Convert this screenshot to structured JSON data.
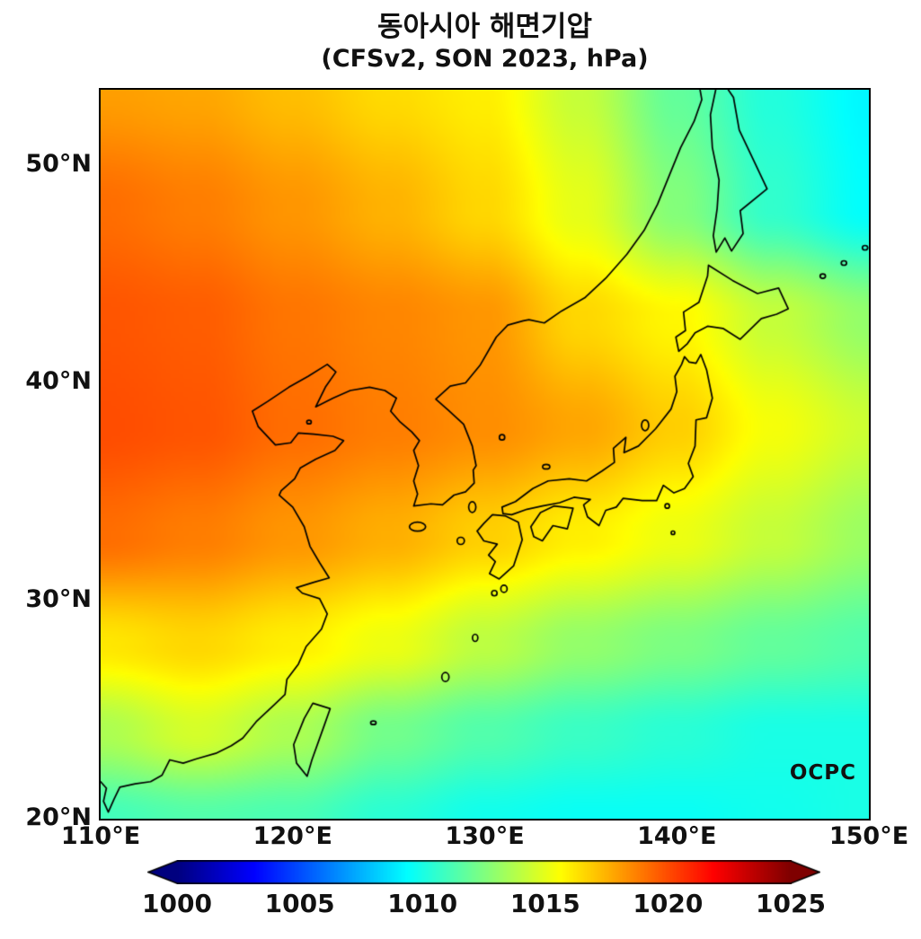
{
  "title": {
    "line1": "동아시아 해면기압",
    "line2": "(CFSv2, SON 2023, hPa)"
  },
  "watermark": "OCPC",
  "axes": {
    "x_ticks": [
      {
        "label": "110°E",
        "lon": 110
      },
      {
        "label": "120°E",
        "lon": 120
      },
      {
        "label": "130°E",
        "lon": 130
      },
      {
        "label": "140°E",
        "lon": 140
      },
      {
        "label": "150°E",
        "lon": 150
      }
    ],
    "y_ticks": [
      {
        "label": "20°N",
        "lat": 20
      },
      {
        "label": "30°N",
        "lat": 30
      },
      {
        "label": "40°N",
        "lat": 40
      },
      {
        "label": "50°N",
        "lat": 50
      }
    ]
  },
  "colorbar": {
    "ticks": [
      "1000",
      "1005",
      "1010",
      "1015",
      "1020",
      "1025"
    ],
    "vmin": 1000,
    "vmax": 1025,
    "extend": "both",
    "under_color": "#00007f",
    "over_color": "#7f0000"
  },
  "chart_data": {
    "type": "heatmap",
    "title": "동아시아 해면기압",
    "subtitle": "(CFSv2, SON 2023, hPa)",
    "model": "CFSv2",
    "season": "SON 2023",
    "units": "hPa",
    "variable": "sea level pressure",
    "colormap": "jet",
    "vmin": 1000,
    "vmax": 1025,
    "lon_range": [
      110,
      150
    ],
    "lat_range": [
      20,
      53.45
    ],
    "grid": {
      "lons": [
        110,
        115,
        120,
        125,
        130,
        135,
        140,
        145,
        150
      ],
      "lats": [
        53.5,
        48,
        43,
        38,
        33,
        28,
        24,
        20
      ],
      "values": [
        [
          1018.0,
          1017.8,
          1017.2,
          1016.5,
          1016.0,
          1014.2,
          1011.8,
          1010.2,
          1009.2
        ],
        [
          1019.2,
          1018.8,
          1018.2,
          1017.5,
          1016.6,
          1015.0,
          1012.6,
          1010.6,
          1009.4
        ],
        [
          1019.8,
          1019.6,
          1019.0,
          1018.6,
          1018.2,
          1016.6,
          1015.8,
          1014.2,
          1013.0
        ],
        [
          1020.0,
          1019.8,
          1019.2,
          1018.8,
          1018.4,
          1017.8,
          1016.8,
          1015.4,
          1014.4
        ],
        [
          1019.2,
          1018.8,
          1018.2,
          1017.6,
          1016.8,
          1016.0,
          1015.2,
          1014.2,
          1013.2
        ],
        [
          1016.2,
          1016.6,
          1016.0,
          1015.2,
          1014.0,
          1013.0,
          1012.4,
          1011.8,
          1011.4
        ],
        [
          1013.6,
          1014.6,
          1013.6,
          1012.2,
          1011.4,
          1010.8,
          1010.4,
          1010.0,
          1010.0
        ],
        [
          1011.0,
          1011.4,
          1011.2,
          1010.4,
          1009.8,
          1009.6,
          1009.6,
          1009.8,
          1010.0
        ]
      ]
    }
  },
  "geo": {
    "coastlines": [
      {
        "name": "asia-mainland-coast",
        "closed": false,
        "points": [
          [
            110.0,
            21.7
          ],
          [
            110.3,
            21.4
          ],
          [
            110.15,
            20.8
          ],
          [
            110.4,
            20.3
          ],
          [
            110.7,
            20.9
          ],
          [
            111.0,
            21.45
          ],
          [
            111.8,
            21.6
          ],
          [
            112.6,
            21.7
          ],
          [
            113.2,
            22.0
          ],
          [
            113.6,
            22.7
          ],
          [
            114.3,
            22.55
          ],
          [
            115.0,
            22.75
          ],
          [
            116.0,
            23.0
          ],
          [
            116.8,
            23.35
          ],
          [
            117.4,
            23.7
          ],
          [
            118.1,
            24.45
          ],
          [
            119.0,
            25.2
          ],
          [
            119.6,
            25.7
          ],
          [
            119.7,
            26.4
          ],
          [
            120.3,
            27.1
          ],
          [
            120.7,
            27.9
          ],
          [
            121.5,
            28.7
          ],
          [
            121.8,
            29.4
          ],
          [
            121.4,
            30.1
          ],
          [
            120.5,
            30.35
          ],
          [
            120.2,
            30.6
          ],
          [
            121.1,
            30.85
          ],
          [
            121.9,
            31.05
          ],
          [
            121.4,
            31.75
          ],
          [
            120.9,
            32.5
          ],
          [
            120.6,
            33.4
          ],
          [
            120.0,
            34.3
          ],
          [
            119.3,
            34.85
          ],
          [
            119.4,
            35.05
          ],
          [
            120.1,
            35.6
          ],
          [
            120.4,
            36.1
          ],
          [
            121.2,
            36.5
          ],
          [
            122.2,
            36.9
          ],
          [
            122.65,
            37.35
          ],
          [
            122.1,
            37.55
          ],
          [
            121.1,
            37.65
          ],
          [
            120.3,
            37.7
          ],
          [
            119.9,
            37.25
          ],
          [
            119.1,
            37.15
          ],
          [
            118.2,
            38.0
          ],
          [
            117.9,
            38.7
          ],
          [
            118.7,
            39.15
          ],
          [
            119.8,
            39.8
          ],
          [
            120.8,
            40.3
          ],
          [
            121.8,
            40.85
          ],
          [
            122.25,
            40.5
          ],
          [
            121.7,
            39.8
          ],
          [
            121.2,
            38.9
          ],
          [
            122.1,
            39.3
          ],
          [
            123.0,
            39.65
          ],
          [
            124.0,
            39.8
          ],
          [
            124.8,
            39.65
          ],
          [
            125.4,
            39.3
          ],
          [
            125.1,
            38.7
          ],
          [
            125.6,
            38.2
          ],
          [
            126.2,
            37.75
          ],
          [
            126.6,
            37.35
          ],
          [
            126.3,
            36.9
          ],
          [
            126.55,
            36.2
          ],
          [
            126.3,
            35.5
          ],
          [
            126.5,
            34.9
          ],
          [
            126.3,
            34.35
          ],
          [
            127.2,
            34.45
          ],
          [
            127.8,
            34.4
          ],
          [
            128.4,
            34.85
          ],
          [
            129.0,
            35.0
          ],
          [
            129.45,
            35.4
          ],
          [
            129.4,
            36.0
          ],
          [
            129.55,
            36.2
          ],
          [
            129.35,
            37.1
          ],
          [
            128.9,
            38.1
          ],
          [
            128.1,
            38.75
          ],
          [
            127.45,
            39.25
          ],
          [
            128.2,
            39.85
          ],
          [
            129.0,
            40.0
          ],
          [
            129.75,
            40.8
          ],
          [
            130.6,
            42.1
          ],
          [
            131.2,
            42.65
          ],
          [
            132.0,
            42.85
          ],
          [
            132.3,
            42.9
          ],
          [
            133.1,
            42.75
          ],
          [
            134.0,
            43.3
          ],
          [
            135.2,
            43.9
          ],
          [
            136.3,
            44.8
          ],
          [
            137.4,
            45.9
          ],
          [
            138.3,
            47.0
          ],
          [
            139.0,
            48.2
          ],
          [
            139.6,
            49.5
          ],
          [
            140.2,
            50.8
          ],
          [
            140.9,
            52.0
          ],
          [
            141.3,
            53.0
          ],
          [
            141.2,
            53.5
          ]
        ]
      },
      {
        "name": "sakhalin",
        "closed": true,
        "points": [
          [
            142.05,
            53.55
          ],
          [
            141.75,
            52.3
          ],
          [
            141.85,
            50.8
          ],
          [
            142.2,
            49.3
          ],
          [
            142.1,
            48.0
          ],
          [
            141.9,
            46.75
          ],
          [
            142.05,
            46.0
          ],
          [
            142.5,
            46.65
          ],
          [
            142.85,
            46.05
          ],
          [
            143.45,
            46.85
          ],
          [
            143.3,
            47.9
          ],
          [
            144.7,
            48.9
          ],
          [
            143.95,
            50.3
          ],
          [
            143.25,
            51.6
          ],
          [
            142.95,
            53.1
          ],
          [
            142.6,
            53.55
          ]
        ]
      },
      {
        "name": "hokkaido",
        "closed": true,
        "points": [
          [
            140.1,
            41.45
          ],
          [
            139.95,
            42.1
          ],
          [
            140.45,
            42.4
          ],
          [
            140.35,
            43.25
          ],
          [
            141.15,
            43.7
          ],
          [
            141.6,
            44.9
          ],
          [
            141.65,
            45.4
          ],
          [
            142.9,
            44.7
          ],
          [
            144.2,
            44.1
          ],
          [
            145.3,
            44.35
          ],
          [
            145.8,
            43.4
          ],
          [
            145.2,
            43.15
          ],
          [
            144.4,
            42.95
          ],
          [
            143.3,
            42.0
          ],
          [
            142.4,
            42.5
          ],
          [
            141.6,
            42.6
          ],
          [
            140.95,
            42.3
          ],
          [
            140.55,
            41.8
          ]
        ]
      },
      {
        "name": "honshu",
        "closed": true,
        "points": [
          [
            141.25,
            41.3
          ],
          [
            141.55,
            40.6
          ],
          [
            141.85,
            39.3
          ],
          [
            141.55,
            38.4
          ],
          [
            141.0,
            38.3
          ],
          [
            140.95,
            37.1
          ],
          [
            140.6,
            36.3
          ],
          [
            140.85,
            35.7
          ],
          [
            140.4,
            35.15
          ],
          [
            139.85,
            34.95
          ],
          [
            139.3,
            35.3
          ],
          [
            138.95,
            34.6
          ],
          [
            138.2,
            34.6
          ],
          [
            137.2,
            34.7
          ],
          [
            136.85,
            34.3
          ],
          [
            136.3,
            34.15
          ],
          [
            135.95,
            33.45
          ],
          [
            135.35,
            33.85
          ],
          [
            135.15,
            34.4
          ],
          [
            135.5,
            34.65
          ],
          [
            134.65,
            34.75
          ],
          [
            133.9,
            34.5
          ],
          [
            133.0,
            34.35
          ],
          [
            132.2,
            34.2
          ],
          [
            131.4,
            33.95
          ],
          [
            130.95,
            34.0
          ],
          [
            130.9,
            34.3
          ],
          [
            131.6,
            34.55
          ],
          [
            132.5,
            35.15
          ],
          [
            133.3,
            35.5
          ],
          [
            134.4,
            35.6
          ],
          [
            135.3,
            35.5
          ],
          [
            136.1,
            35.95
          ],
          [
            136.75,
            36.35
          ],
          [
            136.7,
            37.0
          ],
          [
            137.35,
            37.5
          ],
          [
            137.25,
            36.8
          ],
          [
            138.0,
            37.1
          ],
          [
            138.9,
            37.9
          ],
          [
            139.7,
            38.8
          ],
          [
            140.0,
            39.6
          ],
          [
            139.9,
            40.3
          ],
          [
            140.25,
            40.85
          ],
          [
            140.4,
            41.2
          ],
          [
            140.65,
            40.95
          ],
          [
            141.0,
            40.9
          ]
        ]
      },
      {
        "name": "shikoku",
        "closed": true,
        "points": [
          [
            132.4,
            33.4
          ],
          [
            132.9,
            34.05
          ],
          [
            133.6,
            34.35
          ],
          [
            134.6,
            34.25
          ],
          [
            134.3,
            33.3
          ],
          [
            133.55,
            33.45
          ],
          [
            133.0,
            32.75
          ],
          [
            132.55,
            32.95
          ]
        ]
      },
      {
        "name": "kyushu",
        "closed": true,
        "points": [
          [
            130.4,
            33.95
          ],
          [
            131.05,
            33.9
          ],
          [
            131.75,
            33.6
          ],
          [
            131.95,
            32.8
          ],
          [
            131.5,
            31.6
          ],
          [
            130.75,
            31.0
          ],
          [
            130.25,
            31.25
          ],
          [
            130.55,
            31.8
          ],
          [
            130.2,
            32.1
          ],
          [
            130.65,
            32.6
          ],
          [
            129.95,
            32.75
          ],
          [
            129.6,
            33.2
          ],
          [
            129.95,
            33.55
          ]
        ]
      },
      {
        "name": "taiwan",
        "closed": true,
        "points": [
          [
            121.05,
            25.3
          ],
          [
            121.95,
            25.05
          ],
          [
            121.65,
            24.3
          ],
          [
            121.0,
            22.7
          ],
          [
            120.75,
            21.95
          ],
          [
            120.2,
            22.55
          ],
          [
            120.05,
            23.4
          ],
          [
            120.6,
            24.6
          ]
        ]
      }
    ],
    "island_dots": [
      [
        126.5,
        33.4,
        9,
        5
      ],
      [
        129.35,
        34.3,
        4,
        6
      ],
      [
        130.9,
        37.5,
        3,
        3
      ],
      [
        133.2,
        36.15,
        4,
        2.5
      ],
      [
        138.35,
        38.05,
        4,
        6
      ],
      [
        139.5,
        34.35,
        2.5,
        2.5
      ],
      [
        139.8,
        33.12,
        2,
        2
      ],
      [
        131.0,
        30.55,
        3.5,
        4
      ],
      [
        130.5,
        30.35,
        3,
        3
      ],
      [
        129.5,
        28.3,
        3,
        4
      ],
      [
        127.95,
        26.5,
        4,
        5
      ],
      [
        124.2,
        24.4,
        3,
        2
      ],
      [
        128.75,
        32.75,
        4,
        4
      ],
      [
        120.85,
        38.2,
        2.5,
        2
      ],
      [
        147.6,
        44.9,
        3,
        2.5
      ],
      [
        148.7,
        45.5,
        3,
        2.5
      ],
      [
        149.8,
        46.2,
        3,
        2.5
      ]
    ]
  }
}
